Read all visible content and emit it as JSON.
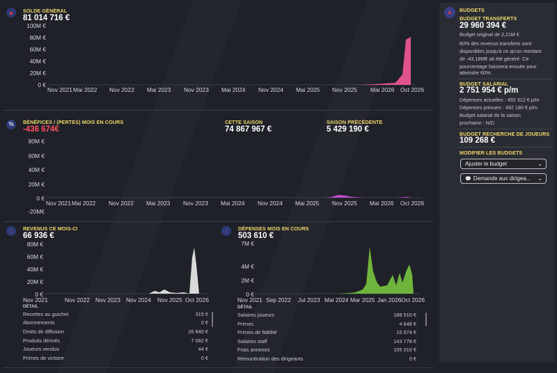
{
  "solde": {
    "title": "SOLDE GÉNÉRAL",
    "value": "81 014 716 €",
    "y_ticks": [
      "100M €",
      "80M €",
      "60M €",
      "40M €",
      "20M €",
      "0 €"
    ],
    "x_ticks": [
      "Nov 2021",
      "Mai 2022",
      "Nov 2022",
      "Mai 2023",
      "Nov 2023",
      "Mai 2024",
      "Nov 2024",
      "Mai 2025",
      "Nov 2025",
      "Mai 2026",
      "Oct 2026"
    ],
    "color": "#e0528d",
    "icon": "bank-icon"
  },
  "benefices": {
    "title": "BÉNÉFICES / (PERTES) MOIS EN COURS",
    "value": "-436 674€",
    "saison_title": "CETTE SAISON",
    "saison_value": "74 867 967 €",
    "prec_title": "SAISON PRÉCÉDENTE",
    "prec_value": "5 429 190 €",
    "y_ticks": [
      "80M €",
      "60M €",
      "40M €",
      "20M €",
      "0 €",
      "-20M€"
    ],
    "x_ticks": [
      "Nov 2021",
      "Mai 2022",
      "Nov 2022",
      "Mai 2023",
      "Nov 2023",
      "Mai 2024",
      "Nov 2024",
      "Mai 2025",
      "Nov 2025",
      "Mai 2026",
      "Oct 2026"
    ],
    "color": "#c34bd1",
    "icon": "balance-icon"
  },
  "revenus": {
    "title": "REVENUS CE MOIS-CI",
    "value": "66 936 €",
    "y_ticks": [
      "80M €",
      "60M €",
      "40M €",
      "20M €",
      "0 €"
    ],
    "x_ticks": [
      "Nov 2021",
      "Nov 2022",
      "Nov 2023",
      "Nov 2024",
      "Nov 2025",
      "Oct 2026"
    ],
    "detail_label": "DÉTAIL",
    "rows": [
      {
        "label": "Recettes au guichet",
        "value": "315 €"
      },
      {
        "label": "Abonnements",
        "value": "0 €"
      },
      {
        "label": "Droits de diffusion",
        "value": "26 840 €"
      },
      {
        "label": "Produits dérivés",
        "value": "7 082 €"
      },
      {
        "label": "Joueurs vendus",
        "value": "44 €"
      },
      {
        "label": "Primes de victoire",
        "value": "0 €"
      }
    ],
    "color": "#d9d9d9",
    "icon": "arrow-up-icon"
  },
  "depenses": {
    "title": "DÉPENSES MOIS EN COURS",
    "value": "503 610 €",
    "y_ticks": [
      "7M €",
      "4M €",
      "2M €",
      "0 €"
    ],
    "x_ticks": [
      "Nov 2021",
      "Sep 2022",
      "Jul 2023",
      "Mai 2024",
      "Mar 2025",
      "Jan 2026",
      "Oct 2026"
    ],
    "detail_label": "DÉTAIL",
    "rows": [
      {
        "label": "Salaires joueurs",
        "value": "188 510 €"
      },
      {
        "label": "Primes",
        "value": "4 648 €"
      },
      {
        "label": "Primes de fidélité",
        "value": "15 574 €"
      },
      {
        "label": "Salaires staff",
        "value": "143 778 €"
      },
      {
        "label": "Frais annexes",
        "value": "105 010 €"
      },
      {
        "label": "Rémunération des dirigeants",
        "value": "0 €"
      }
    ],
    "color": "#6fb43c",
    "icon": "arrow-down-icon"
  },
  "budgets": {
    "title": "BUDGETS",
    "transferts_title": "BUDGET TRANSFERTS",
    "transferts_value": "29 960 394 €",
    "transferts_original": "Budget original de 2,21M €",
    "transferts_note_1": "60% des revenus transferts sont",
    "transferts_note_2": "disponibles jusqu'à ce qu'un montant",
    "transferts_note_3": "de -43,18M€ ait été généré. Ce",
    "transferts_note_4": "pourcentage baissera ensuite pour",
    "transferts_note_5": "atteindre 60%.",
    "salarial_title": "BUDGET SALARIAL",
    "salarial_value": "2 751 954 € p/m",
    "salarial_actuelles": "Dépenses actuelles : 492 312 € p/m",
    "salarial_prevues": "Dépenses prévues : 492 180 € p/m",
    "salarial_saison_1": "Budget salarial de la saison",
    "salarial_saison_2": "prochaine : N/D",
    "recherche_title": "BUDGET RECHERCHE DE JOUEURS",
    "recherche_value": "109 268 €",
    "modifier_title": "MODIFIER LES BUDGETS",
    "ajuster_label": "Ajuster le budget",
    "demande_label": "Demande aux dirigea...",
    "icon": "piggy-bank-icon"
  }
}
